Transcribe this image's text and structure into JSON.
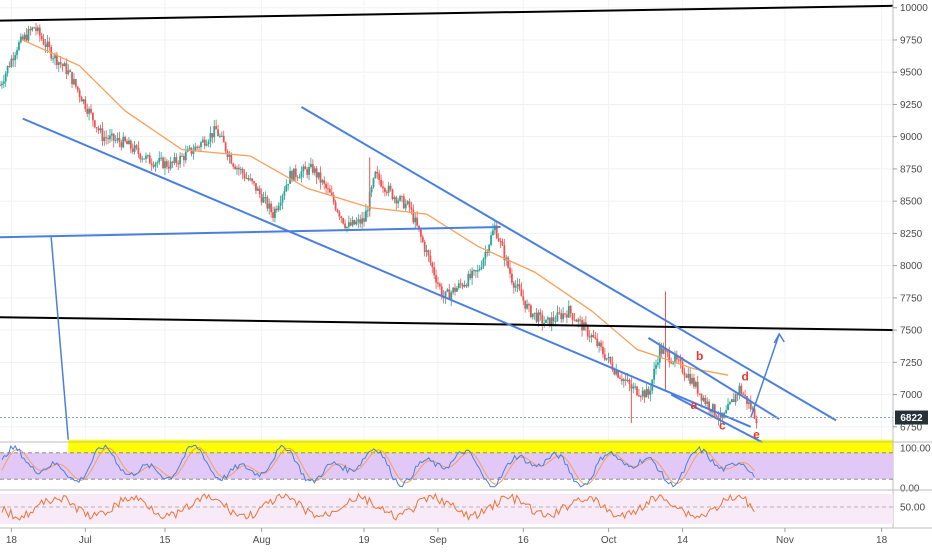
{
  "chart_data": {
    "type": "candlestick",
    "price_axis": {
      "ticks": [
        10000,
        9750,
        9500,
        9250,
        9000,
        8750,
        8500,
        8250,
        8000,
        7750,
        7500,
        7250,
        7000,
        6750
      ],
      "tick_labels": [
        "10000",
        "9750",
        "9500",
        "9250",
        "9000",
        "8750",
        "8500",
        "8250",
        "8000",
        "7750",
        "7500",
        "7250",
        "7000",
        "6750"
      ],
      "range": [
        6640,
        10060
      ],
      "current_price": 6822,
      "current_price_label": "6822"
    },
    "time_axis": {
      "range": [
        "2019-06-16",
        "2019-11-20"
      ],
      "ticks": [
        {
          "date": "2019-06-18",
          "label": "18"
        },
        {
          "date": "2019-07-01",
          "label": "Jul"
        },
        {
          "date": "2019-07-15",
          "label": "15"
        },
        {
          "date": "2019-08-01",
          "label": "Aug"
        },
        {
          "date": "2019-08-19",
          "label": "19"
        },
        {
          "date": "2019-09-01",
          "label": "Sep"
        },
        {
          "date": "2019-09-16",
          "label": "16"
        },
        {
          "date": "2019-10-01",
          "label": "Oct"
        },
        {
          "date": "2019-10-14",
          "label": "14"
        },
        {
          "date": "2019-11-01",
          "label": "Nov"
        },
        {
          "date": "2019-11-18",
          "label": "18"
        }
      ]
    },
    "price_path": [
      [
        "2019-06-16",
        9400
      ],
      [
        "2019-06-19",
        9700
      ],
      [
        "2019-06-22",
        9850
      ],
      [
        "2019-06-25",
        9650
      ],
      [
        "2019-06-28",
        9500
      ],
      [
        "2019-07-01",
        9250
      ],
      [
        "2019-07-04",
        9000
      ],
      [
        "2019-07-08",
        8950
      ],
      [
        "2019-07-12",
        8820
      ],
      [
        "2019-07-16",
        8780
      ],
      [
        "2019-07-20",
        8900
      ],
      [
        "2019-07-24",
        9050
      ],
      [
        "2019-07-27",
        8800
      ],
      [
        "2019-07-31",
        8600
      ],
      [
        "2019-08-03",
        8400
      ],
      [
        "2019-08-06",
        8700
      ],
      [
        "2019-08-10",
        8750
      ],
      [
        "2019-08-13",
        8550
      ],
      [
        "2019-08-16",
        8300
      ],
      [
        "2019-08-19",
        8350
      ],
      [
        "2019-08-21",
        8700
      ],
      [
        "2019-08-24",
        8550
      ],
      [
        "2019-08-27",
        8450
      ],
      [
        "2019-08-30",
        8100
      ],
      [
        "2019-09-02",
        7750
      ],
      [
        "2019-09-05",
        7850
      ],
      [
        "2019-09-08",
        7950
      ],
      [
        "2019-09-11",
        8300
      ],
      [
        "2019-09-14",
        7900
      ],
      [
        "2019-09-17",
        7650
      ],
      [
        "2019-09-20",
        7550
      ],
      [
        "2019-09-24",
        7650
      ],
      [
        "2019-09-28",
        7450
      ],
      [
        "2019-10-02",
        7200
      ],
      [
        "2019-10-05",
        7050
      ],
      [
        "2019-10-08",
        7000
      ],
      [
        "2019-10-10",
        7350
      ],
      [
        "2019-10-13",
        7250
      ],
      [
        "2019-10-15",
        7150
      ],
      [
        "2019-10-18",
        6950
      ],
      [
        "2019-10-21",
        6800
      ],
      [
        "2019-10-24",
        7050
      ],
      [
        "2019-10-27",
        6822
      ]
    ],
    "moving_average": [
      [
        "2019-06-20",
        9750
      ],
      [
        "2019-06-30",
        9550
      ],
      [
        "2019-07-08",
        9200
      ],
      [
        "2019-07-18",
        8900
      ],
      [
        "2019-07-30",
        8850
      ],
      [
        "2019-08-09",
        8600
      ],
      [
        "2019-08-20",
        8450
      ],
      [
        "2019-08-30",
        8400
      ],
      [
        "2019-09-08",
        8150
      ],
      [
        "2019-09-18",
        7950
      ],
      [
        "2019-09-28",
        7650
      ],
      [
        "2019-10-06",
        7350
      ],
      [
        "2019-10-16",
        7200
      ],
      [
        "2019-10-22",
        7150
      ]
    ],
    "trendlines": [
      {
        "name": "resistance-top",
        "color": "#000000",
        "from": [
          "2019-06-16",
          9900
        ],
        "to": [
          "2019-11-20",
          10015
        ]
      },
      {
        "name": "horizontal-support",
        "color": "#000000",
        "from": [
          "2019-06-16",
          7600
        ],
        "to": [
          "2019-11-20",
          7500
        ]
      },
      {
        "name": "upper-channel",
        "color": "#4a7fe0",
        "from": [
          "2019-08-08",
          9230
        ],
        "to": [
          "2019-11-10",
          6800
        ]
      },
      {
        "name": "lower-channel",
        "color": "#4a7fe0",
        "from": [
          "2019-06-20",
          9140
        ],
        "to": [
          "2019-10-26",
          6750
        ]
      },
      {
        "name": "mid-line",
        "color": "#4a7fe0",
        "from": [
          "2019-06-16",
          8220
        ],
        "to": [
          "2019-09-12",
          8300
        ]
      },
      {
        "name": "small-upper",
        "color": "#4a7fe0",
        "from": [
          "2019-10-08",
          7440
        ],
        "to": [
          "2019-10-31",
          6810
        ]
      },
      {
        "name": "small-lower",
        "color": "#4a7fe0",
        "from": [
          "2019-10-12",
          7000
        ],
        "to": [
          "2019-10-28",
          6630
        ]
      }
    ],
    "projection_arrow": {
      "color": "#4a7fe0",
      "from": [
        "2019-10-26",
        6822
      ],
      "to": [
        "2019-10-31",
        7470
      ]
    },
    "pointer_line": {
      "color": "#4a7fe0",
      "from": [
        "2019-06-25",
        8220
      ],
      "to": [
        "2019-06-28",
        6650
      ]
    },
    "highlight_zone": {
      "color": "#ffff00",
      "x_from": "2019-06-28",
      "x_to": "2019-11-20",
      "y_from": 6520,
      "y_to": 6650
    },
    "wave_labels": [
      {
        "text": "a",
        "date": "2019-10-16",
        "price": 6890
      },
      {
        "text": "b",
        "date": "2019-10-17",
        "price": 7270
      },
      {
        "text": "c",
        "date": "2019-10-21",
        "price": 6730
      },
      {
        "text": "d",
        "date": "2019-10-25",
        "price": 7110
      },
      {
        "text": "e",
        "date": "2019-10-27",
        "price": 6660
      }
    ],
    "stochastic": {
      "ticks": [
        "100.00",
        "0.00"
      ],
      "upper_band": 80,
      "lower_band": 20
    },
    "oscillator": {
      "ticks": [
        "50.00"
      ]
    },
    "colors": {
      "up": "#26a69a",
      "down": "#ef5350",
      "ma": "#f6a05a",
      "channel": "#4a7fe0",
      "stoch_bg": "#e1c8f7",
      "stoch_k": "#4a7fe0",
      "stoch_d": "#f6a05a",
      "osc_bg": "#f9eaf8",
      "osc_line": "#e8773a",
      "wave_label": "#e53935"
    }
  }
}
